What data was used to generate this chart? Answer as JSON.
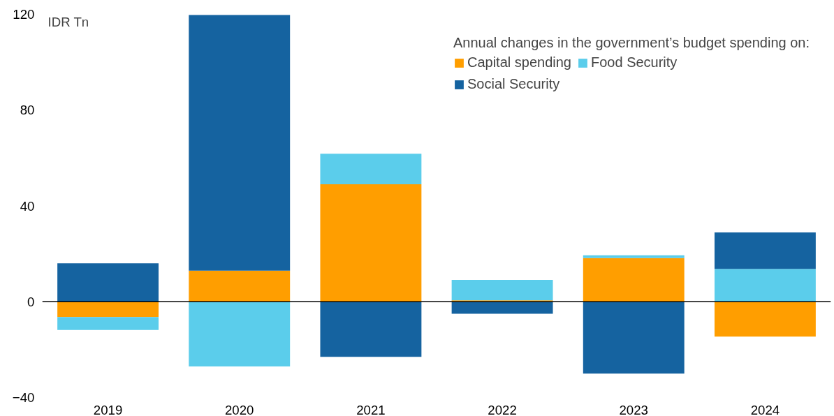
{
  "chart_data": {
    "type": "bar",
    "stacked": true,
    "ylabel": "IDR Tn",
    "legend_title": "Annual changes in the government’s budget spending on:",
    "legend": "top right",
    "grid": false,
    "categories": [
      "2019",
      "2020",
      "2021",
      "2022",
      "2023",
      "2024"
    ],
    "ylim": [
      -40,
      120
    ],
    "yticks": [
      -40,
      0,
      40,
      80,
      120
    ],
    "ref_lines": [
      {
        "axis": "y",
        "value": 0,
        "color": "#000000"
      }
    ],
    "series": [
      {
        "name": "Capital spending",
        "color": "#ff9e00",
        "values": [
          -6.4,
          13,
          49,
          0.6,
          18.2,
          -14.6
        ]
      },
      {
        "name": "Food Security",
        "color": "#5bcdeb",
        "values": [
          -5.4,
          -27,
          12.8,
          8.5,
          1.2,
          13.7
        ]
      },
      {
        "name": "Social Security",
        "color": "#1563a0",
        "values": [
          16,
          106.7,
          -23,
          -5,
          -30,
          15.2
        ]
      }
    ]
  }
}
